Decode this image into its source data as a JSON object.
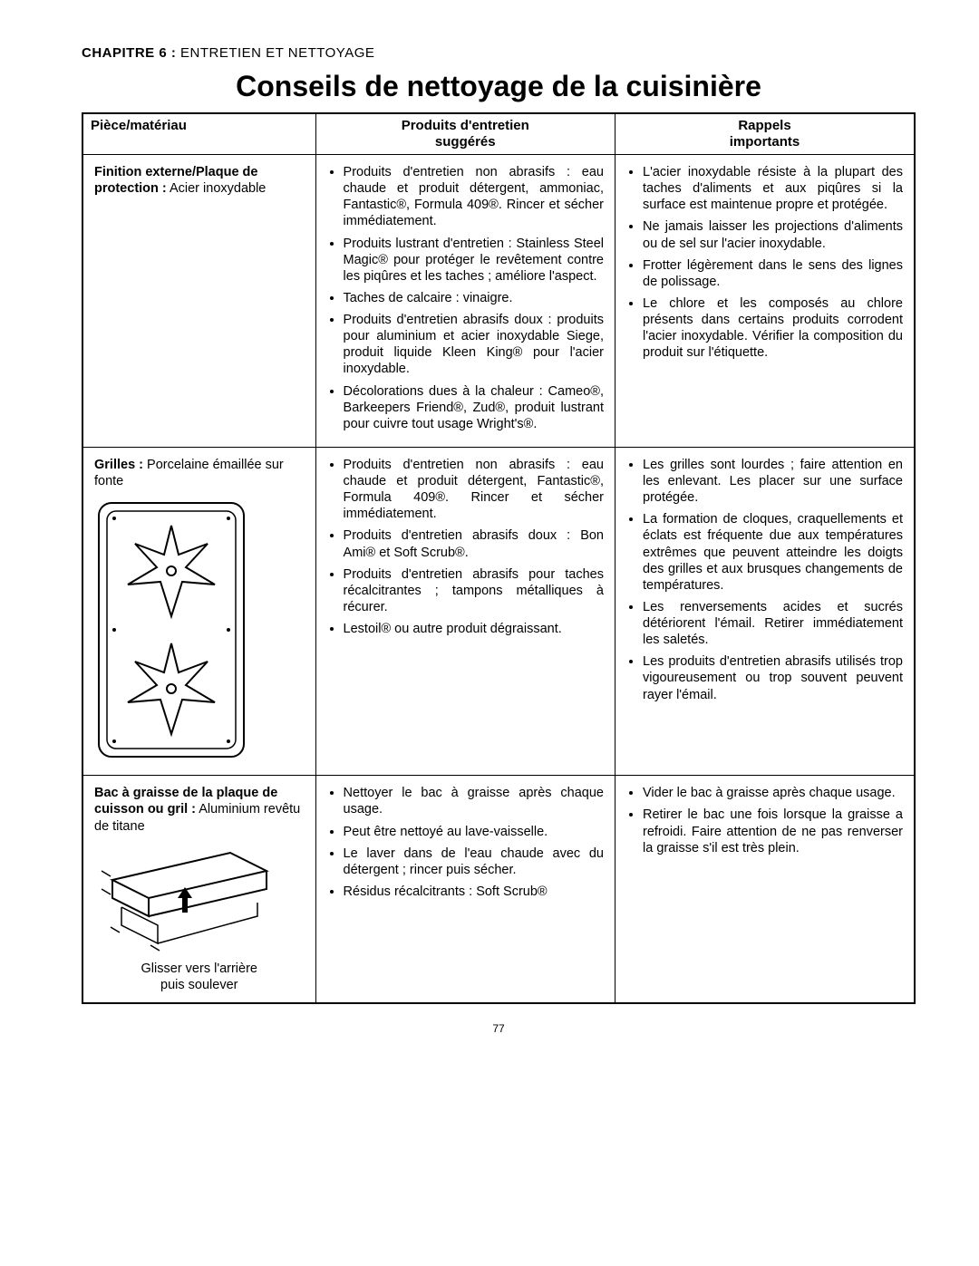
{
  "chapter": {
    "label_bold": "CHAPITRE 6 :",
    "label_rest": " ENTRETIEN ET NETTOYAGE"
  },
  "title": "Conseils de nettoyage de la cuisinière",
  "headers": {
    "col1": "Pièce/matériau",
    "col2a": "Produits d'entretien",
    "col2b": "suggérés",
    "col3a": "Rappels",
    "col3b": "importants"
  },
  "rows": [
    {
      "part_bold": "Finition externe/Plaque de protection :",
      "part_rest": " Acier inoxydable",
      "has_grate_svg": false,
      "has_tray_svg": false,
      "products": [
        "Produits d'entretien non abrasifs : eau chaude et produit détergent, ammoniac, Fantastic®, Formula 409®. Rincer et sécher immédiatement.",
        "Produits lustrant d'entretien : Stainless Steel Magic® pour protéger le revêtement contre les piqûres et les taches ; améliore l'aspect.",
        "Taches de calcaire : vinaigre.",
        "Produits d'entretien abrasifs doux : produits pour aluminium et acier inoxydable Siege, produit liquide Kleen King® pour l'acier inoxydable.",
        "Décolorations dues à la chaleur : Cameo®, Barkeepers Friend®, Zud®, produit lustrant pour cuivre tout usage Wright's®."
      ],
      "reminders": [
        "L'acier inoxydable résiste à la plupart des taches d'aliments et aux piqûres si la surface est maintenue propre et protégée.",
        "Ne jamais laisser les projections d'aliments ou de sel sur l'acier inoxydable.",
        "Frotter légèrement dans le sens des lignes de polissage.",
        "Le chlore et les composés au chlore présents dans certains produits corrodent l'acier inoxydable. Vérifier la composition du produit sur l'étiquette."
      ]
    },
    {
      "part_bold": "Grilles :",
      "part_rest": " Porcelaine émaillée sur fonte",
      "has_grate_svg": true,
      "has_tray_svg": false,
      "products": [
        "Produits d'entretien non abrasifs : eau chaude et produit détergent, Fantastic®, Formula 409®. Rincer et sécher immédiatement.",
        "Produits d'entretien abrasifs doux : Bon Ami® et Soft Scrub®.",
        "Produits d'entretien abrasifs pour taches récalcitrantes ; tampons métalliques à récurer.",
        "Lestoil® ou autre produit dégraissant."
      ],
      "reminders": [
        "Les grilles sont lourdes ; faire attention en les enlevant. Les placer sur une surface protégée.",
        "La formation de cloques, craquellements et éclats est fréquente due aux températures extrêmes que peuvent atteindre les doigts des grilles et aux brusques changements de températures.",
        "Les renversements acides et sucrés détériorent l'émail. Retirer immédiatement les saletés.",
        "Les produits d'entretien abrasifs utilisés trop vigoureusement ou trop souvent peuvent rayer l'émail."
      ]
    },
    {
      "part_bold": "Bac à graisse de la plaque de cuisson ou gril :",
      "part_rest": " Aluminium revêtu de titane",
      "has_grate_svg": false,
      "has_tray_svg": true,
      "tray_caption1": "Glisser vers l'arrière",
      "tray_caption2": "puis soulever",
      "products": [
        "Nettoyer le bac à graisse après chaque usage.",
        "Peut être nettoyé au lave-vaisselle.",
        "Le laver dans de l'eau chaude avec du détergent ; rincer puis sécher.",
        "Résidus récalcitrants : Soft Scrub®"
      ],
      "reminders": [
        "Vider le bac à graisse après chaque usage.",
        "Retirer le bac une fois lorsque la graisse a refroidi. Faire attention de ne pas renverser la graisse s'il est très plein."
      ]
    }
  ],
  "page_number": "77"
}
